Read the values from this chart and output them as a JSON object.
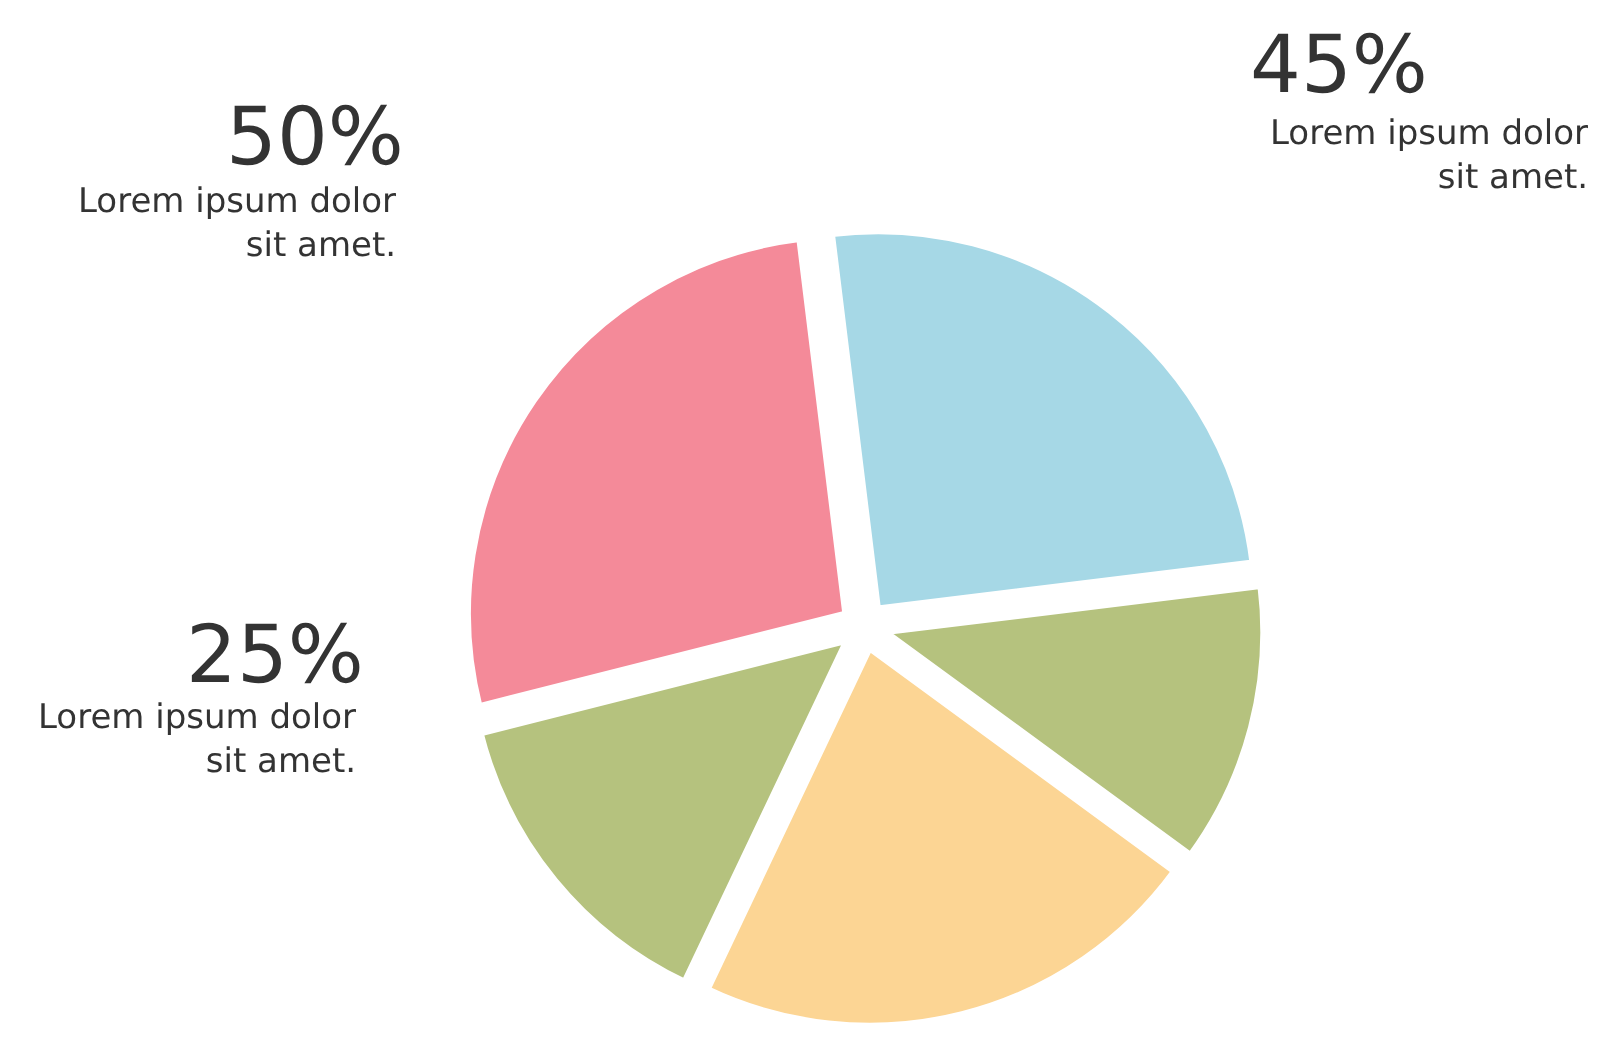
{
  "chart_data": {
    "type": "pie",
    "categories": [
      null,
      null,
      null,
      null,
      null
    ],
    "values": [
      25,
      12,
      22,
      14,
      27
    ],
    "colors": [
      "#a6d8e6",
      "#b5c27e",
      "#fcd594",
      "#b5c27e",
      "#f48a99"
    ],
    "legend": false,
    "annotations": [
      "45%",
      "Lorem ipsum dolor\nsit amet.",
      "50%",
      "Lorem ipsum dolor\nsit amet.",
      "25%",
      "Lorem ipsum dolor\nsit amet."
    ]
  }
}
